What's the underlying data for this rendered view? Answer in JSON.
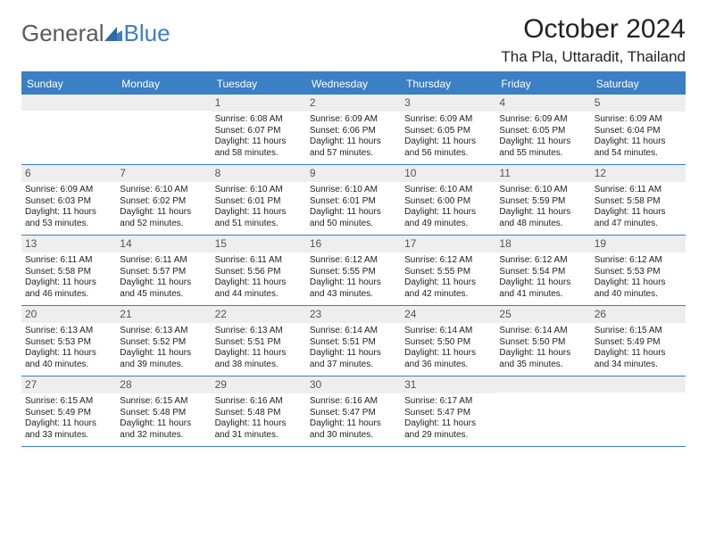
{
  "logo": {
    "text_part1": "General",
    "text_part2": "Blue",
    "color_blue": "#3b7fc4",
    "color_gray": "#5a5a5a"
  },
  "header": {
    "month_title": "October 2024",
    "location": "Tha Pla, Uttaradit, Thailand",
    "title_fontsize": 30,
    "location_fontsize": 17
  },
  "styling": {
    "weekday_bg": "#3b7fc4",
    "weekday_fg": "#ffffff",
    "daynum_bg": "#eeeeee",
    "border_color": "#3b7fc4",
    "body_fontsize": 10,
    "daynum_fontsize": 12,
    "weekday_fontsize": 12,
    "page_bg": "#ffffff"
  },
  "weekdays": [
    "Sunday",
    "Monday",
    "Tuesday",
    "Wednesday",
    "Thursday",
    "Friday",
    "Saturday"
  ],
  "weeks": [
    [
      {
        "n": "",
        "sunrise": "",
        "sunset": "",
        "daylight": ""
      },
      {
        "n": "",
        "sunrise": "",
        "sunset": "",
        "daylight": ""
      },
      {
        "n": "1",
        "sunrise": "Sunrise: 6:08 AM",
        "sunset": "Sunset: 6:07 PM",
        "daylight": "Daylight: 11 hours and 58 minutes."
      },
      {
        "n": "2",
        "sunrise": "Sunrise: 6:09 AM",
        "sunset": "Sunset: 6:06 PM",
        "daylight": "Daylight: 11 hours and 57 minutes."
      },
      {
        "n": "3",
        "sunrise": "Sunrise: 6:09 AM",
        "sunset": "Sunset: 6:05 PM",
        "daylight": "Daylight: 11 hours and 56 minutes."
      },
      {
        "n": "4",
        "sunrise": "Sunrise: 6:09 AM",
        "sunset": "Sunset: 6:05 PM",
        "daylight": "Daylight: 11 hours and 55 minutes."
      },
      {
        "n": "5",
        "sunrise": "Sunrise: 6:09 AM",
        "sunset": "Sunset: 6:04 PM",
        "daylight": "Daylight: 11 hours and 54 minutes."
      }
    ],
    [
      {
        "n": "6",
        "sunrise": "Sunrise: 6:09 AM",
        "sunset": "Sunset: 6:03 PM",
        "daylight": "Daylight: 11 hours and 53 minutes."
      },
      {
        "n": "7",
        "sunrise": "Sunrise: 6:10 AM",
        "sunset": "Sunset: 6:02 PM",
        "daylight": "Daylight: 11 hours and 52 minutes."
      },
      {
        "n": "8",
        "sunrise": "Sunrise: 6:10 AM",
        "sunset": "Sunset: 6:01 PM",
        "daylight": "Daylight: 11 hours and 51 minutes."
      },
      {
        "n": "9",
        "sunrise": "Sunrise: 6:10 AM",
        "sunset": "Sunset: 6:01 PM",
        "daylight": "Daylight: 11 hours and 50 minutes."
      },
      {
        "n": "10",
        "sunrise": "Sunrise: 6:10 AM",
        "sunset": "Sunset: 6:00 PM",
        "daylight": "Daylight: 11 hours and 49 minutes."
      },
      {
        "n": "11",
        "sunrise": "Sunrise: 6:10 AM",
        "sunset": "Sunset: 5:59 PM",
        "daylight": "Daylight: 11 hours and 48 minutes."
      },
      {
        "n": "12",
        "sunrise": "Sunrise: 6:11 AM",
        "sunset": "Sunset: 5:58 PM",
        "daylight": "Daylight: 11 hours and 47 minutes."
      }
    ],
    [
      {
        "n": "13",
        "sunrise": "Sunrise: 6:11 AM",
        "sunset": "Sunset: 5:58 PM",
        "daylight": "Daylight: 11 hours and 46 minutes."
      },
      {
        "n": "14",
        "sunrise": "Sunrise: 6:11 AM",
        "sunset": "Sunset: 5:57 PM",
        "daylight": "Daylight: 11 hours and 45 minutes."
      },
      {
        "n": "15",
        "sunrise": "Sunrise: 6:11 AM",
        "sunset": "Sunset: 5:56 PM",
        "daylight": "Daylight: 11 hours and 44 minutes."
      },
      {
        "n": "16",
        "sunrise": "Sunrise: 6:12 AM",
        "sunset": "Sunset: 5:55 PM",
        "daylight": "Daylight: 11 hours and 43 minutes."
      },
      {
        "n": "17",
        "sunrise": "Sunrise: 6:12 AM",
        "sunset": "Sunset: 5:55 PM",
        "daylight": "Daylight: 11 hours and 42 minutes."
      },
      {
        "n": "18",
        "sunrise": "Sunrise: 6:12 AM",
        "sunset": "Sunset: 5:54 PM",
        "daylight": "Daylight: 11 hours and 41 minutes."
      },
      {
        "n": "19",
        "sunrise": "Sunrise: 6:12 AM",
        "sunset": "Sunset: 5:53 PM",
        "daylight": "Daylight: 11 hours and 40 minutes."
      }
    ],
    [
      {
        "n": "20",
        "sunrise": "Sunrise: 6:13 AM",
        "sunset": "Sunset: 5:53 PM",
        "daylight": "Daylight: 11 hours and 40 minutes."
      },
      {
        "n": "21",
        "sunrise": "Sunrise: 6:13 AM",
        "sunset": "Sunset: 5:52 PM",
        "daylight": "Daylight: 11 hours and 39 minutes."
      },
      {
        "n": "22",
        "sunrise": "Sunrise: 6:13 AM",
        "sunset": "Sunset: 5:51 PM",
        "daylight": "Daylight: 11 hours and 38 minutes."
      },
      {
        "n": "23",
        "sunrise": "Sunrise: 6:14 AM",
        "sunset": "Sunset: 5:51 PM",
        "daylight": "Daylight: 11 hours and 37 minutes."
      },
      {
        "n": "24",
        "sunrise": "Sunrise: 6:14 AM",
        "sunset": "Sunset: 5:50 PM",
        "daylight": "Daylight: 11 hours and 36 minutes."
      },
      {
        "n": "25",
        "sunrise": "Sunrise: 6:14 AM",
        "sunset": "Sunset: 5:50 PM",
        "daylight": "Daylight: 11 hours and 35 minutes."
      },
      {
        "n": "26",
        "sunrise": "Sunrise: 6:15 AM",
        "sunset": "Sunset: 5:49 PM",
        "daylight": "Daylight: 11 hours and 34 minutes."
      }
    ],
    [
      {
        "n": "27",
        "sunrise": "Sunrise: 6:15 AM",
        "sunset": "Sunset: 5:49 PM",
        "daylight": "Daylight: 11 hours and 33 minutes."
      },
      {
        "n": "28",
        "sunrise": "Sunrise: 6:15 AM",
        "sunset": "Sunset: 5:48 PM",
        "daylight": "Daylight: 11 hours and 32 minutes."
      },
      {
        "n": "29",
        "sunrise": "Sunrise: 6:16 AM",
        "sunset": "Sunset: 5:48 PM",
        "daylight": "Daylight: 11 hours and 31 minutes."
      },
      {
        "n": "30",
        "sunrise": "Sunrise: 6:16 AM",
        "sunset": "Sunset: 5:47 PM",
        "daylight": "Daylight: 11 hours and 30 minutes."
      },
      {
        "n": "31",
        "sunrise": "Sunrise: 6:17 AM",
        "sunset": "Sunset: 5:47 PM",
        "daylight": "Daylight: 11 hours and 29 minutes."
      },
      {
        "n": "",
        "sunrise": "",
        "sunset": "",
        "daylight": ""
      },
      {
        "n": "",
        "sunrise": "",
        "sunset": "",
        "daylight": ""
      }
    ]
  ]
}
